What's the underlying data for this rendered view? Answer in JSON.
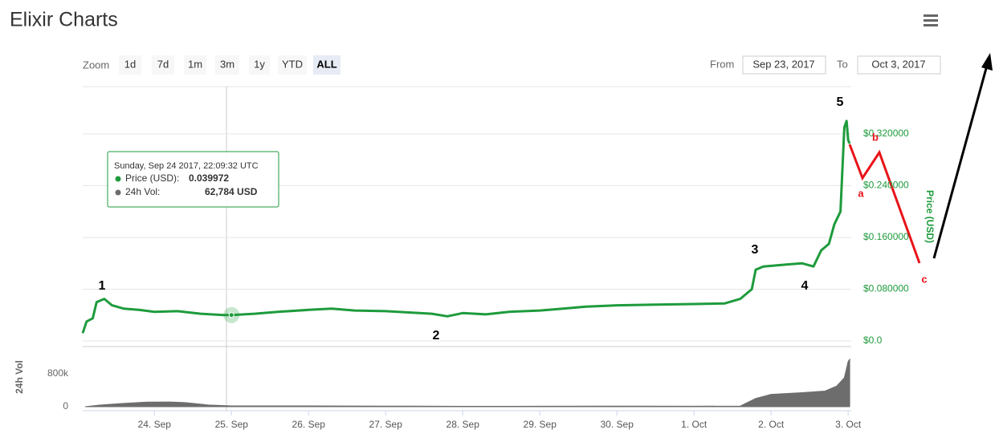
{
  "header": {
    "title": "Elixir Charts"
  },
  "toolbar": {
    "zoom_label": "Zoom",
    "zoom_buttons": [
      "1d",
      "7d",
      "1m",
      "3m",
      "1y",
      "YTD",
      "ALL"
    ],
    "selected_zoom": 6,
    "from_label": "From",
    "from_value": "Sep 23, 2017",
    "to_label": "To",
    "to_value": "Oct 3, 2017"
  },
  "annotations": {
    "waves": [
      "1",
      "2",
      "3",
      "4",
      "5"
    ],
    "corrections": [
      "a",
      "b",
      "c"
    ]
  },
  "chart_data": [
    {
      "type": "line",
      "y_label": "Price (USD)",
      "x": [
        0.07,
        0.12,
        0.2,
        0.25,
        0.35,
        0.45,
        0.6,
        0.8,
        1.0,
        1.3,
        1.6,
        1.9,
        2.0,
        2.3,
        2.6,
        3.0,
        3.3,
        3.6,
        4.0,
        4.3,
        4.6,
        4.8,
        5.0,
        5.3,
        5.6,
        6.0,
        6.3,
        6.6,
        7.0,
        7.5,
        8.0,
        8.4,
        8.6,
        8.75,
        8.8,
        8.9,
        9.2,
        9.4,
        9.55,
        9.65,
        9.75,
        9.82,
        9.9,
        9.95,
        9.98,
        10.0,
        10.02
      ],
      "series": [
        {
          "name": "Price (USD)",
          "color": "#1e9b3c",
          "values": [
            0.012,
            0.03,
            0.035,
            0.06,
            0.065,
            0.055,
            0.05,
            0.048,
            0.045,
            0.046,
            0.042,
            0.04,
            0.039972,
            0.042,
            0.045,
            0.048,
            0.05,
            0.047,
            0.046,
            0.044,
            0.042,
            0.038,
            0.043,
            0.041,
            0.045,
            0.047,
            0.05,
            0.053,
            0.055,
            0.056,
            0.057,
            0.058,
            0.065,
            0.08,
            0.11,
            0.115,
            0.118,
            0.12,
            0.115,
            0.14,
            0.15,
            0.18,
            0.2,
            0.33,
            0.34,
            0.31,
            0.305
          ]
        }
      ],
      "xlim": [
        0.07,
        10.04
      ],
      "ylim": [
        0,
        0.393
      ],
      "yticks": [
        {
          "value": 0,
          "label": "$0.0"
        },
        {
          "value": 0.08,
          "label": "$0.080000"
        },
        {
          "value": 0.16,
          "label": "$0.160000"
        },
        {
          "value": 0.24,
          "label": "$0.240000"
        },
        {
          "value": 0.32,
          "label": "$0.320000"
        }
      ],
      "grid": true,
      "tooltip": {
        "title": "Sunday, Sep 24 2017, 22:09:32 UTC",
        "rows": [
          {
            "label": "Price (USD):",
            "value": "0.039972"
          },
          {
            "label": "24h Vol:",
            "value": "62,784 USD"
          }
        ]
      }
    },
    {
      "type": "area",
      "y_label": "24h Vol",
      "x": [
        0.1,
        0.3,
        0.6,
        0.9,
        1.2,
        1.4,
        1.7,
        2.0,
        3.0,
        4.0,
        5.0,
        6.0,
        7.0,
        8.0,
        8.6,
        8.8,
        9.0,
        9.4,
        9.7,
        9.85,
        9.95,
        10.0,
        10.02
      ],
      "series": [
        {
          "name": "24h Vol",
          "color": "#6d6d6d",
          "values": [
            0,
            40000,
            80000,
            110000,
            115000,
            100000,
            40000,
            20000,
            20000,
            15000,
            10000,
            12000,
            15000,
            12000,
            15000,
            200000,
            300000,
            340000,
            380000,
            500000,
            700000,
            1100000,
            1150000
          ]
        }
      ],
      "xlim": [
        0.07,
        10.04
      ],
      "ylim": [
        0,
        1460000
      ],
      "yticks": [
        0,
        {
          "value": 800000,
          "label": "800k"
        }
      ],
      "xticks": [
        {
          "value": 1,
          "label": "24. Sep"
        },
        {
          "value": 2,
          "label": "25. Sep"
        },
        {
          "value": 3,
          "label": "26. Sep"
        },
        {
          "value": 4,
          "label": "27. Sep"
        },
        {
          "value": 5,
          "label": "28. Sep"
        },
        {
          "value": 6,
          "label": "29. Sep"
        },
        {
          "value": 7,
          "label": "30. Sep"
        },
        {
          "value": 8,
          "label": "1. Oct"
        },
        {
          "value": 9,
          "label": "2. Oct"
        },
        {
          "value": 10,
          "label": "3. Oct"
        }
      ]
    }
  ]
}
